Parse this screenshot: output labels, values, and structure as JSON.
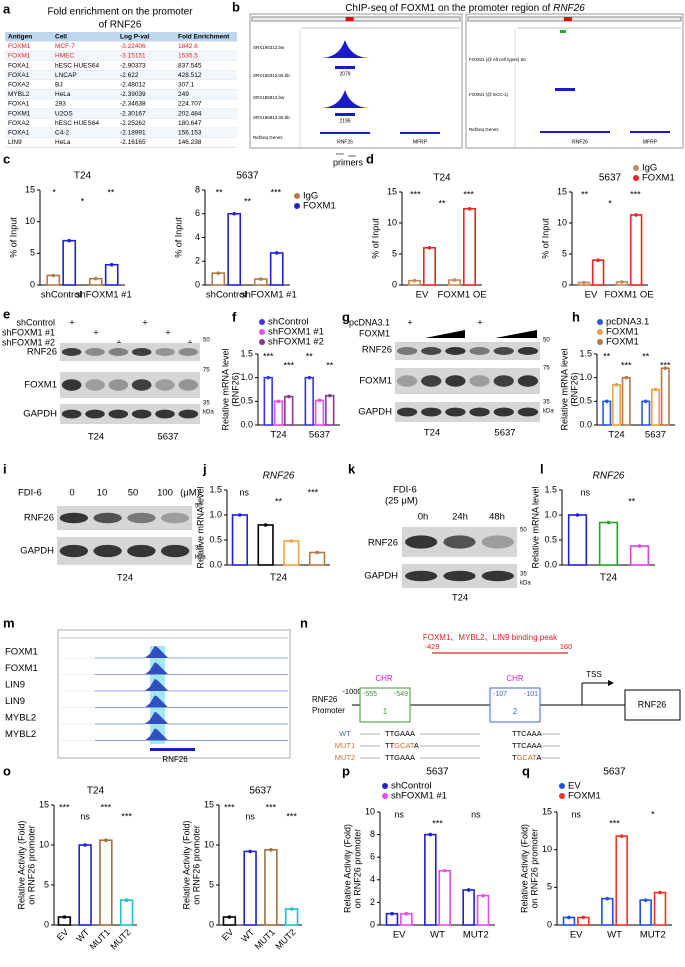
{
  "panel_labels": [
    "a",
    "b",
    "c",
    "d",
    "e",
    "f",
    "g",
    "h",
    "i",
    "j",
    "k",
    "l",
    "m",
    "n",
    "o",
    "p",
    "q"
  ],
  "table": {
    "title": [
      "Fold enrichment on the promoter",
      "of RNF26"
    ],
    "columns": [
      "Antigen",
      "Cell",
      "Log P-val",
      "Fold Enrichment"
    ],
    "rows": [
      [
        "FOXM1",
        "MCF-7",
        "-3.22406",
        "1842.6"
      ],
      [
        "FOXM1",
        "HMEC",
        "-3.15151",
        "1535.5"
      ],
      [
        "FOXA1",
        "hESC HUES64",
        "-2.90373",
        "837.545"
      ],
      [
        "FOXA1",
        "LNCAP",
        "-2.622",
        "428.512"
      ],
      [
        "FOXA2",
        "BJ",
        "-2.48012",
        "307.1"
      ],
      [
        "MYBL2",
        "HeLa",
        "-2.39039",
        "249"
      ],
      [
        "FOXA1",
        "293",
        "-2.34638",
        "224.707"
      ],
      [
        "FOXM1",
        "U2OS",
        "-2.30167",
        "202.484"
      ],
      [
        "FOXA2",
        "hESC HUES64",
        "-2.25262",
        "180.647"
      ],
      [
        "FOXA1",
        "C4-2",
        "-2.18991",
        "156.153"
      ],
      [
        "LIN9",
        "HeLa",
        "-2.16165",
        "146.238"
      ]
    ],
    "highlight_rows": [
      0,
      1
    ],
    "highlight_color": "#e8202a",
    "header_color": "#bdd7ee"
  },
  "chipseq": {
    "title": "ChIP-seq of FOXM1 on the promoter region of ",
    "title_gene": "RNF26",
    "tracks": [
      "SRX190312.bw",
      "SRX190312.05.bb",
      "SRX185912.bw",
      "SRX185912.05.bb",
      "RefSeq Genes"
    ],
    "peaks": [
      "2079",
      "2195"
    ],
    "genes": [
      "RNF26",
      "MFRP"
    ],
    "primers": "primers",
    "right_tracks": [
      "FOXM1 (@ All cell types) 50",
      "FOXM1 (@ ECC-1)",
      "RefSeq Genes"
    ]
  },
  "blot_e": {
    "rows": [
      "shControl",
      "shFOXM1 #1",
      "shFOXM1 #2"
    ],
    "plus": "+",
    "proteins": [
      "RNF26",
      "FOXM1",
      "GAPDH"
    ],
    "markers": [
      "50",
      "75",
      "35"
    ],
    "unit": "kDa",
    "cells": [
      "T24",
      "5637"
    ]
  },
  "blot_g": {
    "rows": [
      "pcDNA3.1",
      "FOXM1"
    ],
    "plus": "+",
    "proteins": [
      "RNF26",
      "FOXM1",
      "GAPDH"
    ],
    "markers": [
      "50",
      "75",
      "35"
    ],
    "unit": "kDa",
    "cells": [
      "T24",
      "5637"
    ]
  },
  "blot_i": {
    "treatment": "FDI-6",
    "doses": [
      "0",
      "10",
      "50",
      "100"
    ],
    "dose_unit": "(μM)",
    "proteins": [
      "RNF26",
      "GAPDH"
    ],
    "markers": [
      "50",
      "35"
    ],
    "unit": "kDa",
    "cell": "T24"
  },
  "blot_k": {
    "treatment": "FDI-6",
    "dose": "(25 μM)",
    "times": [
      "0h",
      "24h",
      "48h"
    ],
    "proteins": [
      "RNF26",
      "GAPDH"
    ],
    "markers": [
      "50",
      "35"
    ],
    "unit": "kDa",
    "cell": "T24"
  },
  "tracks_m": {
    "tracks": [
      "FOXM1",
      "FOXM1",
      "LIN9",
      "LIN9",
      "MYBL2",
      "MYBL2"
    ],
    "gene": "RNF26"
  },
  "promoter_n": {
    "peak_label": "FOXM1、MYBL2、LIN9 binding peak",
    "peak_range": [
      "-429",
      "160"
    ],
    "chr": "CHR",
    "start": "-1000",
    "promoter_label": [
      "RNF26",
      "Promoter"
    ],
    "sites": [
      {
        "name": "1",
        "range": [
          "-555",
          "-549"
        ]
      },
      {
        "name": "2",
        "range": [
          "-107",
          "-101"
        ]
      }
    ],
    "tss": "TSS",
    "gene": "RNF26",
    "sequences": [
      {
        "name": "WT",
        "left": [
          "TTGAAA"
        ],
        "right": [
          "TTCAAA"
        ]
      },
      {
        "name": "MUT1",
        "left": [
          "TT",
          "GCAT",
          "A"
        ],
        "right": [
          "TTCAAA"
        ]
      },
      {
        "name": "MUT2",
        "left": [
          "TTGAAA"
        ],
        "right": [
          "T",
          "GCAT",
          "A"
        ]
      }
    ],
    "mutation_color": "#d2691e"
  },
  "chart_data": [
    {
      "type": "bar",
      "title": "T24",
      "ylabel": [
        "% of Input"
      ],
      "categories": [
        "shControl",
        "shFOXM1 #1"
      ],
      "series": [
        {
          "color": "#b07a4a",
          "values": [
            1.5,
            1.0
          ]
        },
        {
          "color": "#2020d0",
          "values": [
            7.0,
            3.2
          ]
        }
      ],
      "ylim": [
        0,
        15
      ],
      "yticks": [
        0,
        5,
        10,
        15
      ],
      "annotations": [
        "*",
        "*",
        "**"
      ]
    },
    {
      "type": "bar",
      "title": "5637",
      "ylabel": [
        "% of Input"
      ],
      "categories": [
        "shControl",
        "shFOXM1 #1"
      ],
      "series": [
        {
          "name": "IgG",
          "color": "#b07a4a",
          "values": [
            1.0,
            0.5
          ]
        },
        {
          "name": "FOXM1",
          "color": "#2020d0",
          "values": [
            6.0,
            2.7
          ]
        }
      ],
      "ylim": [
        0,
        8
      ],
      "yticks": [
        0,
        2,
        4,
        6,
        8
      ],
      "annotations": [
        "**",
        "**",
        "***"
      ]
    },
    {
      "type": "bar",
      "title": "T24",
      "ylabel": [
        "% of Input"
      ],
      "categories": [
        "EV",
        "FOXM1 OE"
      ],
      "series": [
        {
          "color": "#c8885a",
          "values": [
            0.7,
            0.8
          ]
        },
        {
          "color": "#ee2222",
          "values": [
            6.0,
            12.3
          ]
        }
      ],
      "ylim": [
        0,
        15
      ],
      "yticks": [
        0,
        5,
        10,
        15
      ],
      "annotations": [
        "***",
        "**",
        "***"
      ]
    },
    {
      "type": "bar",
      "title": "5637",
      "ylabel": [
        "% of Input"
      ],
      "categories": [
        "EV",
        "FOXM1 OE"
      ],
      "series": [
        {
          "name": "IgG",
          "color": "#c8885a",
          "values": [
            0.4,
            0.5
          ]
        },
        {
          "name": "FOXM1",
          "color": "#ee2222",
          "values": [
            4.0,
            11.3
          ]
        }
      ],
      "ylim": [
        0,
        15
      ],
      "yticks": [
        0,
        5,
        10,
        15
      ],
      "annotations": [
        "**",
        "*",
        "***"
      ]
    },
    {
      "type": "bar",
      "ylabel": [
        "Relative mRNA level",
        "(RNF26)"
      ],
      "categories": [
        "T24",
        "5637"
      ],
      "series": [
        {
          "name": "shControl",
          "color": "#3535f0",
          "values": [
            1.0,
            1.0
          ]
        },
        {
          "name": "shFOXM1 #1",
          "color": "#e84ce8",
          "values": [
            0.5,
            0.52
          ]
        },
        {
          "name": "shFOXM1 #2",
          "color": "#8a3a8a",
          "values": [
            0.6,
            0.62
          ]
        }
      ],
      "ylim": [
        0,
        1.5
      ],
      "yticks": [
        {
          "value": 0,
          "label": "0.0"
        },
        0.5,
        {
          "value": 1,
          "label": "1.0"
        },
        1.5
      ],
      "annotations": [
        "***",
        "***",
        "**",
        "**"
      ]
    },
    {
      "type": "bar",
      "ylabel": [
        "Relative mRNA level",
        "(RNF26)"
      ],
      "categories": [
        "T24",
        "5637"
      ],
      "series": [
        {
          "name": "pcDNA3.1",
          "color": "#2a5bd7",
          "values": [
            0.5,
            0.5
          ]
        },
        {
          "name": "FOXM1",
          "color": "#f0a040",
          "values": [
            0.85,
            0.75
          ]
        },
        {
          "name": "FOXM1",
          "color": "#b07a4a",
          "values": [
            1.0,
            1.2
          ]
        }
      ],
      "ylim": [
        0,
        1.5
      ],
      "yticks": [
        {
          "value": 0,
          "label": "0.0"
        },
        0.5,
        {
          "value": 1,
          "label": "1.0"
        },
        1.5
      ],
      "annotations": [
        "**",
        "***",
        "**",
        "***"
      ]
    },
    {
      "type": "bar",
      "title": "RNF26",
      "xlabel": "T24",
      "ylabel": [
        "Relative mRNA level"
      ],
      "categories": [
        null,
        null,
        null,
        null
      ],
      "values": [
        1.0,
        0.8,
        0.48,
        0.25
      ],
      "colors": [
        "#2020d0",
        "#000000",
        "#f0a040",
        "#b07a4a"
      ],
      "ylim": [
        0,
        1.5
      ],
      "yticks": [
        {
          "value": 0,
          "label": "0.0"
        },
        0.5,
        {
          "value": 1,
          "label": "1.0"
        },
        1.5
      ],
      "annotations": [
        "ns",
        "**",
        "***"
      ]
    },
    {
      "type": "bar",
      "title": "RNF26",
      "xlabel": "T24",
      "ylabel": [
        "Relative mRNA level"
      ],
      "categories": [
        null,
        null,
        null
      ],
      "values": [
        1.0,
        0.85,
        0.38
      ],
      "colors": [
        "#2020d0",
        "#2aa02a",
        "#e040e0"
      ],
      "ylim": [
        0,
        1.5
      ],
      "yticks": [
        {
          "value": 0,
          "label": "0.0"
        },
        0.5,
        {
          "value": 1,
          "label": "1.0"
        },
        1.5
      ],
      "annotations": [
        "ns",
        "**"
      ]
    },
    {
      "type": "bar",
      "title": "T24",
      "ylabel": [
        "Relative Activity (Fold)",
        "on RNF26 promoter"
      ],
      "categories": [
        "EV",
        "WT",
        "MUT1",
        "MUT2"
      ],
      "values": [
        1.0,
        10.0,
        10.6,
        3.1
      ],
      "colors": [
        "#000000",
        "#2020d0",
        "#a07040",
        "#20c0d0"
      ],
      "ylim": [
        0,
        15
      ],
      "yticks": [
        0,
        5,
        10,
        15
      ],
      "annotations": [
        "***",
        "ns",
        "***",
        "***"
      ]
    },
    {
      "type": "bar",
      "title": "5637",
      "ylabel": [
        "Relative Activity (Fold)",
        "on RNF26 promoter"
      ],
      "categories": [
        "EV",
        "WT",
        "MUT1",
        "MUT2"
      ],
      "values": [
        1.0,
        9.2,
        9.4,
        2.0
      ],
      "colors": [
        "#000000",
        "#2020d0",
        "#a07040",
        "#20c0d0"
      ],
      "ylim": [
        0,
        15
      ],
      "yticks": [
        0,
        5,
        10,
        15
      ],
      "annotations": [
        "***",
        "ns",
        "***",
        "***"
      ]
    },
    {
      "type": "bar",
      "title": "5637",
      "ylabel": [
        "Relative Activity (Fold)",
        "on RNF26 promoter"
      ],
      "categories": [
        "EV",
        "WT",
        "MUT2"
      ],
      "series": [
        {
          "name": "shControl",
          "color": "#2020d0",
          "values": [
            1.0,
            8.0,
            3.1
          ]
        },
        {
          "name": "shFOXM1 #1",
          "color": "#e84ce8",
          "values": [
            1.0,
            4.8,
            2.6
          ]
        }
      ],
      "ylim": [
        0,
        10
      ],
      "yticks": [
        0,
        2,
        4,
        6,
        8,
        10
      ],
      "annotations": [
        "ns",
        "***",
        "ns"
      ]
    },
    {
      "type": "bar",
      "title": "5637",
      "ylabel": [
        "Relative Activity (Fold)",
        "on RNF26 promoter"
      ],
      "categories": [
        "EV",
        "WT",
        "MUT2"
      ],
      "series": [
        {
          "name": "EV",
          "color": "#2050e0",
          "values": [
            1.0,
            3.5,
            3.3
          ]
        },
        {
          "name": "FOXM1",
          "color": "#ee3322",
          "values": [
            1.0,
            11.8,
            4.3
          ]
        }
      ],
      "ylim": [
        0,
        15
      ],
      "yticks": [
        0,
        5,
        10,
        15
      ],
      "annotations": [
        "ns",
        "***",
        "*"
      ]
    }
  ]
}
